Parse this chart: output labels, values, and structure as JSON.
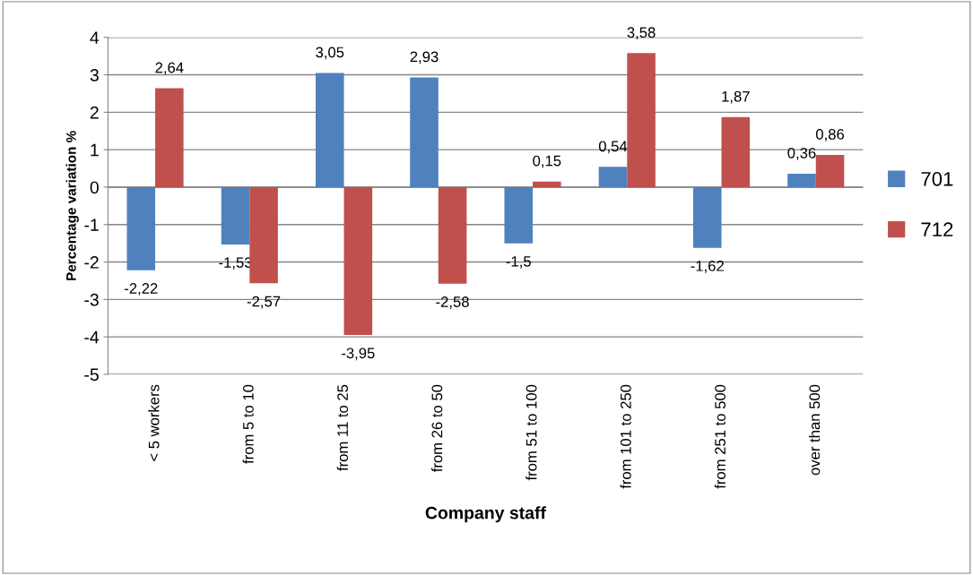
{
  "chart_data": {
    "type": "bar",
    "xlabel": "Company staff",
    "ylabel": "Percentage variation %",
    "categories": [
      "< 5 workers",
      "from 5 to 10",
      "from 11 to 25",
      "from 26 to 50",
      "from 51 to 100",
      "from 101 to 250",
      "from 251 to 500",
      "over than 500"
    ],
    "series": [
      {
        "name": "701",
        "color": "#4f81bd",
        "values": [
          -2.22,
          -1.53,
          3.05,
          2.93,
          -1.5,
          0.54,
          -1.62,
          0.36
        ],
        "value_labels": [
          "-2,22",
          "-1,53",
          "3,05",
          "2,93",
          "-1,5",
          "0,54",
          "-1,62",
          "0,36"
        ]
      },
      {
        "name": "712",
        "color": "#c0504d",
        "values": [
          2.64,
          -2.57,
          -3.95,
          -2.58,
          0.15,
          3.58,
          1.87,
          0.86
        ],
        "value_labels": [
          "2,64",
          "-2,57",
          "-3,95",
          "-2,58",
          "0,15",
          "3,58",
          "1,87",
          "0,86"
        ]
      }
    ],
    "ylim": [
      -5,
      4
    ],
    "yticks": [
      -5,
      -4,
      -3,
      -2,
      -1,
      0,
      1,
      2,
      3,
      4
    ],
    "grid": "y",
    "legend": "right"
  }
}
